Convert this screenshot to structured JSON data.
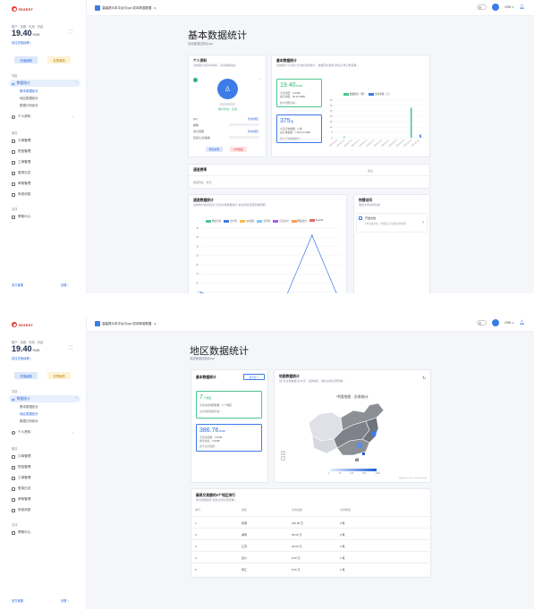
{
  "brand": "RIGEST",
  "sidebar": {
    "acct_line": "账户 · 余额 · 可用 · 冻结",
    "balance": "19.40",
    "balance_unit": "RMB",
    "recharge_link": "前往充值续期 ›",
    "btn_primary": "充值续期",
    "btn_secondary": "发票管理",
    "sec1": "导航",
    "active_item": "数据统计",
    "sub_items": [
      "基本数据统计",
      "地区数据统计",
      "数据分析统计"
    ],
    "personal": "个人资料",
    "sec2": "服务",
    "menu": [
      "订单管理",
      "短信管理",
      "工单管理",
      "登录日志",
      "审核管理",
      "系统消息"
    ],
    "sec3": "支持",
    "help": "帮助中心",
    "bottom_left": "官方客服",
    "bottom_right": "设置 ›"
  },
  "topbar": {
    "text": "温馨提示本平台与xyz 成本精准数据..  ∨",
    "user": "1996 ∨"
  },
  "page1": {
    "title": "基本数据统计",
    "subtitle": "欢迎使用控制台xyz",
    "profile": {
      "title": "个人资料",
      "subtitle": "当前账户的基本资料，及余额等信息",
      "status": "账户状态：正常",
      "fields": [
        "QQ",
        "邮箱",
        "支付宝账",
        "实名认证/备案"
      ],
      "bind": "暂未绑定",
      "btn_edit": "修改资料",
      "btn_vip": "VIP权益"
    },
    "basic": {
      "title": "基本数据统计",
      "subtitle": "当前账户今日和7日内的消费统计，数据实时更新 前往订单记录查看 ›",
      "balance_val": "19.40",
      "balance_unit": "RMB",
      "lines1": [
        "今日消费：0 RMB",
        "累计消费：39.00 RMB"
      ],
      "link1": "账户明细查看 ›",
      "count_val": "375",
      "count_unit": "笔",
      "lines2": [
        "今日订单数量：0 笔",
        "总订单数量：7149.21 RMB"
      ],
      "link2": "累计订单数据统计 ›",
      "legend": [
        "数据统计（笔）",
        "交易金额（元）"
      ]
    },
    "notice": {
      "title": "通道费率",
      "col": "备注",
      "row": "通道列表 · 暂无"
    },
    "channel": {
      "title": "通道数据统计",
      "subtitle": "当前账户各通道近7日的交易数据统计 前往通道页面查看明细 ›",
      "legend": [
        "微信支付",
        "支付宝",
        "QQ钱包",
        "云闪付",
        "京东支付",
        "网银支付",
        "PayPal"
      ],
      "y_ticks": [
        "40",
        "35",
        "30",
        "25",
        "20",
        "15",
        "10",
        "5",
        "0"
      ]
    },
    "quick": {
      "title": "快捷访问",
      "subtitle": "便捷访问常用功能",
      "item_title": "开发文档",
      "item_desc": "API对接文档，查阅接口字段和示例说明"
    }
  },
  "page2": {
    "title": "地区数据统计",
    "subtitle": "欢迎使用控制台xyz",
    "basic": {
      "title": "基本数据统计",
      "select": "近7天 ∨",
      "region_val": "7",
      "region_unit": "个地区",
      "region_line": "今日交易地区数量：0 个地区",
      "region_link": "交易地区数据查看 ›",
      "money_val": "386.76",
      "money_unit": "RMB",
      "money_line1": "今日交易额：0 RMB",
      "money_line2": "累计交易：0 RMB",
      "money_link": "累计交易数据 ›"
    },
    "map": {
      "title": "地图数据统计",
      "subtitle": "近7天交易数据 近30天 · 全部地区 · 前往交易记录查看 ›",
      "chart_title": "中国地图 - 交易统计",
      "scale": [
        "0",
        "10",
        "100",
        "500",
        "1000"
      ],
      "credit": "Highcharts.com © Natural Earth"
    },
    "table": {
      "title": "最高交易额的5个地区排行",
      "subtitle": "按交易额排序 前往交易记录查看 ›",
      "headers": [
        "排行",
        "地区",
        "交易金额",
        "交易数量"
      ],
      "rows": [
        [
          "1",
          "香港",
          "240.00 元",
          "2 笔"
        ],
        [
          "2",
          "湖南",
          "56.00 元",
          "2 笔"
        ],
        [
          "3",
          "江苏",
          "20.00 元",
          "2 笔"
        ],
        [
          "4",
          "四川",
          "6.00 元",
          "1 笔"
        ],
        [
          "5",
          "浙江",
          "5.00 元",
          "1 笔"
        ]
      ]
    }
  },
  "chart_data": [
    {
      "type": "bar",
      "categories": [
        "2023-05-10",
        "2023-05-11",
        "2023-05-12",
        "2023-05-13",
        "2023-05-14",
        "2023-05-15",
        "2023-05-16",
        "2023-05-17",
        "2023-05-18",
        "2023-05-19",
        "2023-05-20",
        "2023-05-21"
      ],
      "series": [
        {
          "name": "数据统计（笔）",
          "values": [
            0,
            1,
            0,
            0,
            0,
            0,
            0,
            0,
            0,
            0,
            28,
            0
          ],
          "color": "#4ac78f"
        },
        {
          "name": "交易金额（元）",
          "values": [
            0,
            0,
            0,
            0,
            0,
            0,
            0,
            0,
            0,
            0,
            0,
            3
          ],
          "color": "#3c7be8"
        }
      ],
      "ylim": [
        0,
        35
      ],
      "yticks": [
        0,
        5,
        10,
        15,
        20,
        25,
        30,
        35
      ]
    },
    {
      "type": "line",
      "x": [
        "1",
        "2",
        "3",
        "4",
        "5",
        "6"
      ],
      "series": [
        {
          "name": "微信支付",
          "values": [
            5,
            0,
            0,
            0,
            36,
            0
          ]
        }
      ],
      "ylim": [
        0,
        40
      ],
      "yticks": [
        0,
        5,
        10,
        15,
        20,
        25,
        30,
        35,
        40
      ]
    }
  ],
  "colors": {
    "accent": "#2e6bdc",
    "green": "#4ac78f",
    "danger": "#d9413a",
    "map_dark": "#8c8f96",
    "map_light": "#dfe1e6"
  }
}
